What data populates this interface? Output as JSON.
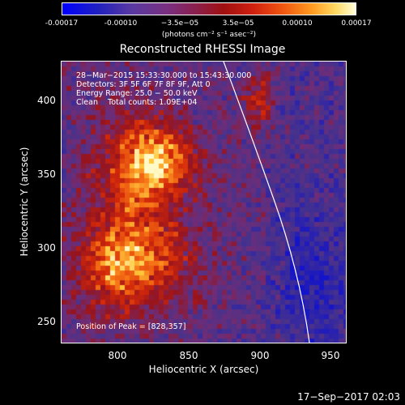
{
  "colorbar": {
    "ticks": [
      "-0.00017",
      "-0.00010",
      "−3.5e−05",
      "3.5e−05",
      "0.00010",
      "0.00017"
    ],
    "units": "(photons cm⁻² s⁻¹ asec⁻²)"
  },
  "title": "Reconstructed RHESSI Image",
  "info": {
    "time": "28−Mar−2015 15:33:30.000 to 15:43:30.000",
    "detectors": "Detectors: 3F 5F 6F 7F 8F 9F, Att 0",
    "energy": "Energy Range: 25.0 − 50.0 keV",
    "clean": "Clean    Total counts: 1.09E+04"
  },
  "peak": "Position of Peak = [828,357]",
  "axes": {
    "xlabel": "Heliocentric X (arcsec)",
    "ylabel": "Heliocentric Y (arcsec)",
    "xticks": [
      "800",
      "850",
      "900",
      "950"
    ],
    "yticks": [
      "400",
      "350",
      "300",
      "250"
    ]
  },
  "footer_date": "17−Sep−2017 02:03"
}
